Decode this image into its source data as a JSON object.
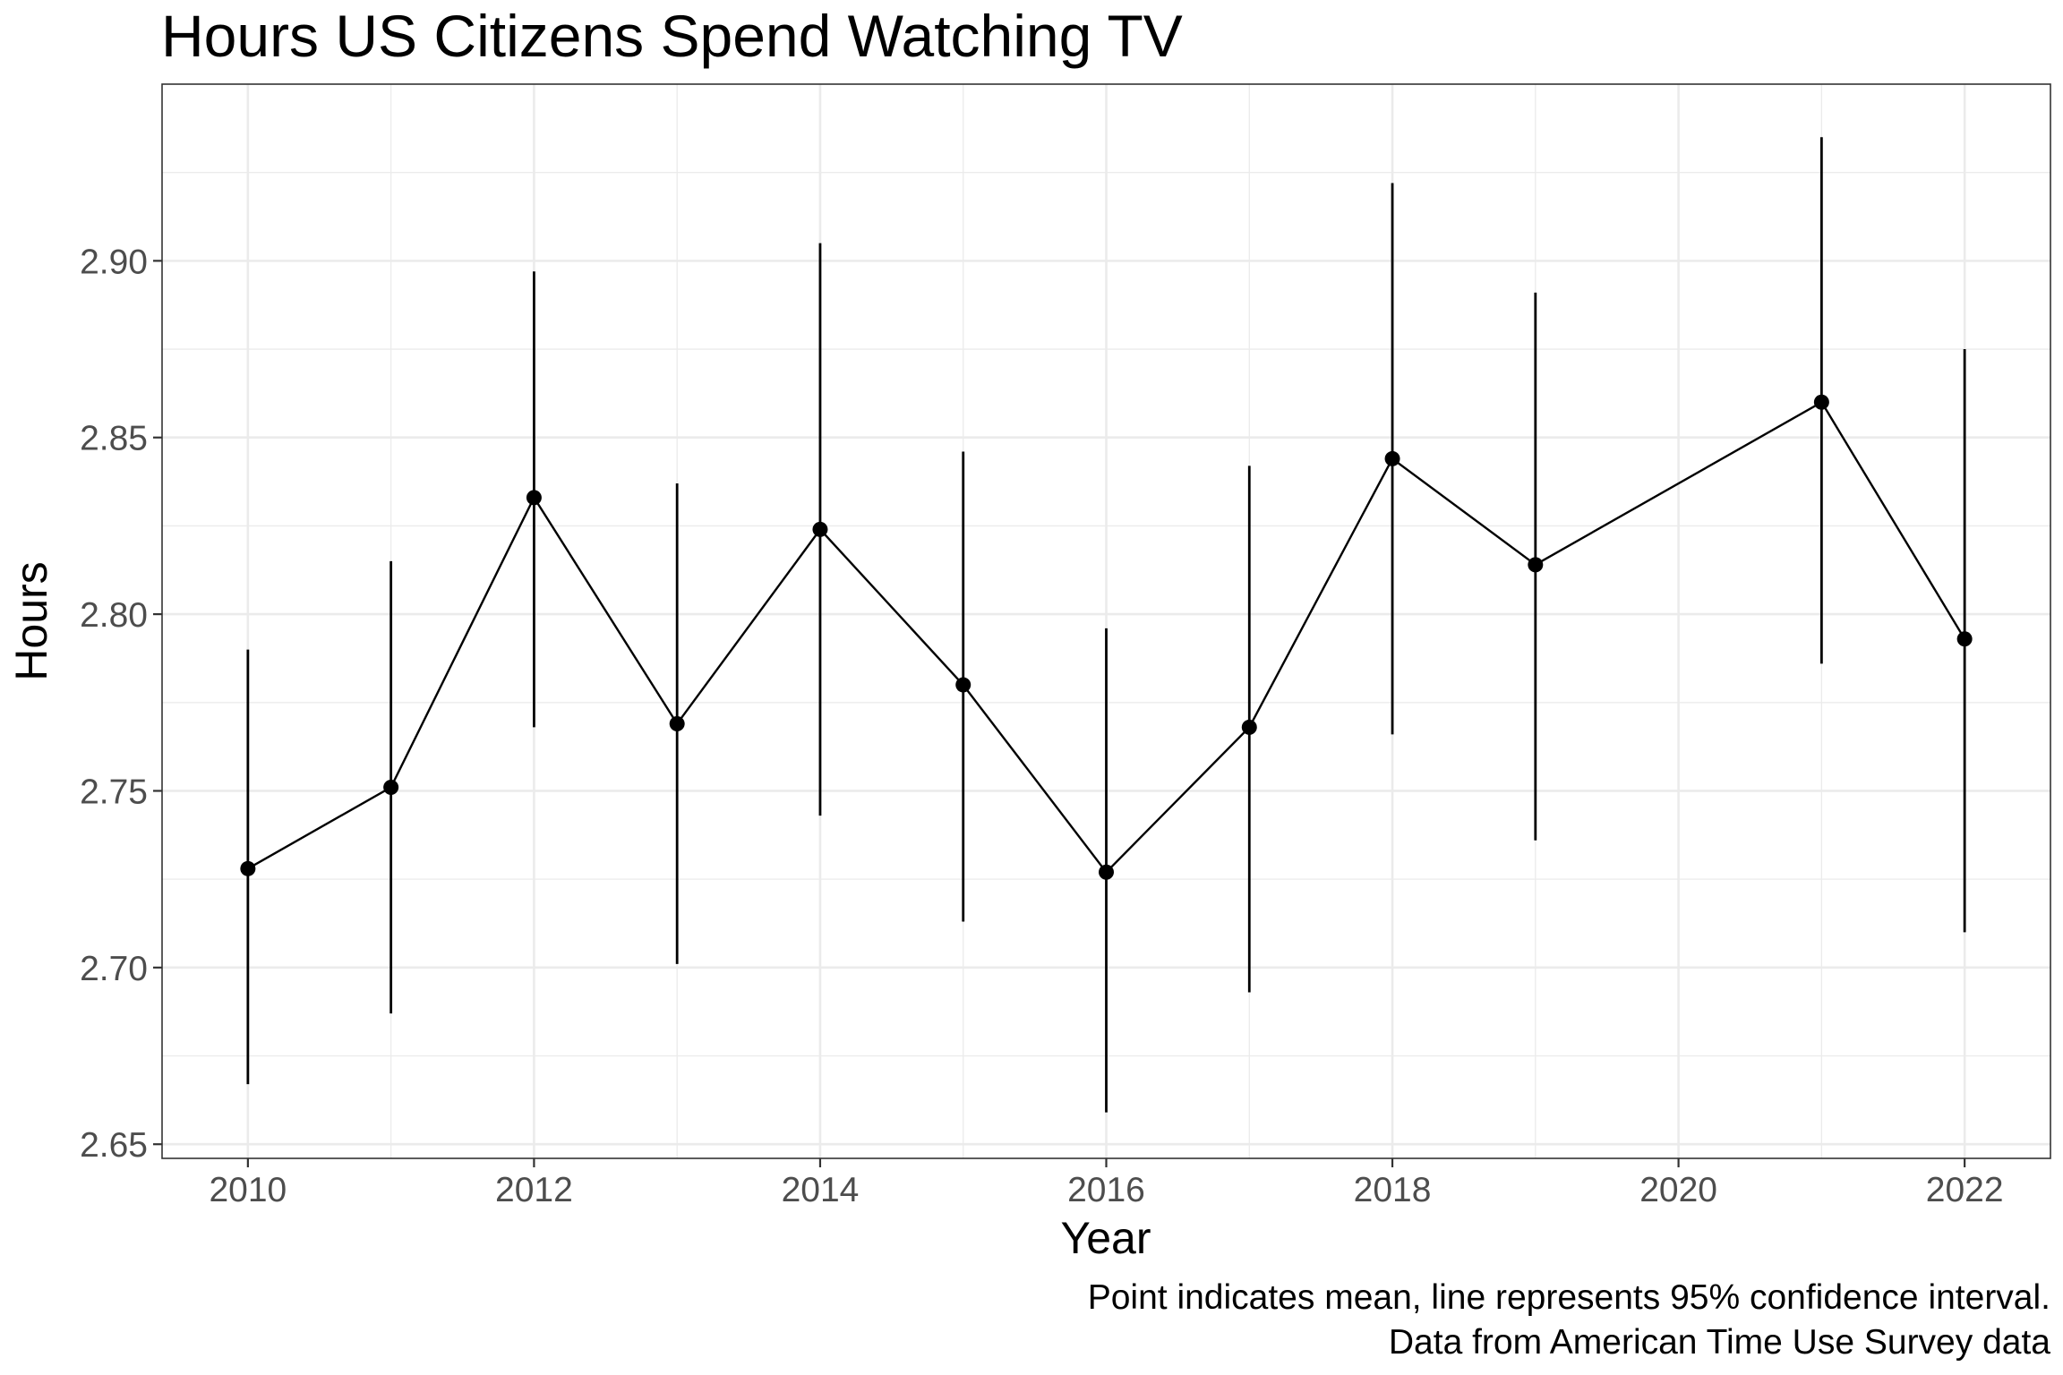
{
  "chart_data": {
    "type": "line",
    "title": "Hours US Citizens Spend Watching TV",
    "xlabel": "Year",
    "ylabel": "Hours",
    "caption": [
      "Point indicates mean, line represents 95% confidence interval.",
      "Data from American Time Use Survey data"
    ],
    "xlim": [
      2009.4,
      2022.6
    ],
    "ylim": [
      2.646,
      2.95
    ],
    "x_ticks": [
      2010,
      2012,
      2014,
      2016,
      2018,
      2020,
      2022
    ],
    "x_tick_labels": [
      "2010",
      "2012",
      "2014",
      "2016",
      "2018",
      "2020",
      "2022"
    ],
    "y_ticks": [
      2.65,
      2.7,
      2.75,
      2.8,
      2.85,
      2.9
    ],
    "y_tick_labels": [
      "2.65",
      "2.70",
      "2.75",
      "2.80",
      "2.85",
      "2.90"
    ],
    "grid": true,
    "legend": "none",
    "series": [
      {
        "x": [
          2010,
          2011,
          2012,
          2013,
          2014,
          2015,
          2016,
          2017,
          2018,
          2019,
          2021,
          2022
        ],
        "mean": [
          2.728,
          2.751,
          2.833,
          2.769,
          2.824,
          2.78,
          2.727,
          2.768,
          2.844,
          2.814,
          2.86,
          2.793
        ],
        "ci_lower": [
          2.667,
          2.687,
          2.768,
          2.701,
          2.743,
          2.713,
          2.659,
          2.693,
          2.766,
          2.736,
          2.786,
          2.71
        ],
        "ci_upper": [
          2.79,
          2.815,
          2.897,
          2.837,
          2.905,
          2.846,
          2.796,
          2.842,
          2.922,
          2.891,
          2.935,
          2.875
        ]
      }
    ],
    "colors": {
      "points": "#000000",
      "lines": "#000000",
      "grid": "#ebebeb",
      "tick_text": "#4d4d4d"
    }
  }
}
